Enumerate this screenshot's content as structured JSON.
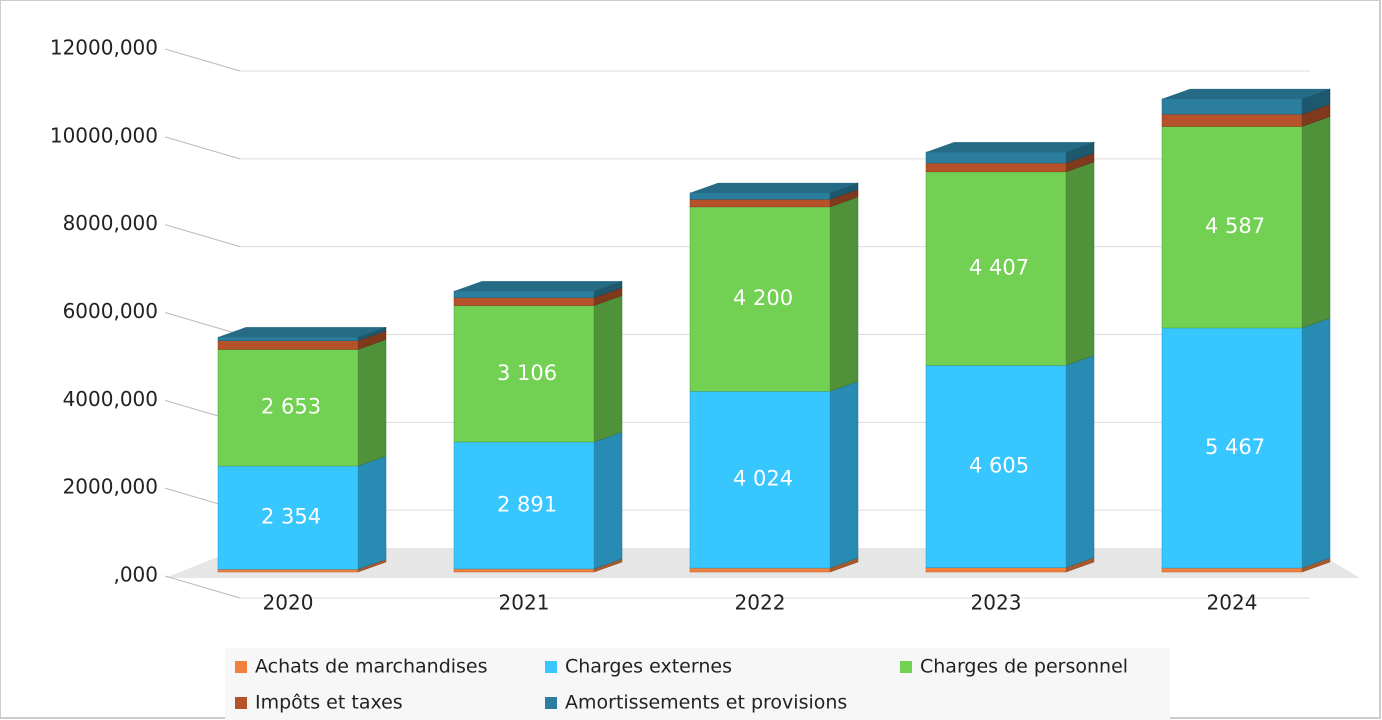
{
  "chart_data": {
    "type": "bar3d_stacked",
    "categories": [
      "2020",
      "2021",
      "2022",
      "2023",
      "2024"
    ],
    "series": [
      {
        "name": "Achats de marchandises",
        "color": "#f0803c",
        "values": [
          60,
          70,
          90,
          100,
          90
        ]
      },
      {
        "name": "Charges externes",
        "color": "#38c6ff",
        "values": [
          2354,
          2891,
          4024,
          4605,
          5467
        ],
        "value_labels": [
          "2 354",
          "2 891",
          "4 024",
          "4 605",
          "5 467"
        ]
      },
      {
        "name": "Charges de personnel",
        "color": "#72d052",
        "values": [
          2653,
          3106,
          4200,
          4407,
          4587
        ],
        "value_labels": [
          "2 653",
          "3 106",
          "4 200",
          "4 407",
          "4 587"
        ]
      },
      {
        "name": "Impôts et taxes",
        "color": "#b5522a",
        "values": [
          200,
          180,
          170,
          200,
          280
        ]
      },
      {
        "name": "Amortissements et provisions",
        "color": "#2b7e9e",
        "values": [
          80,
          150,
          150,
          250,
          350
        ]
      }
    ],
    "ylim": [
      0,
      12000
    ],
    "yticks": [
      {
        "value": 0,
        "label": ",000"
      },
      {
        "value": 2000,
        "label": "2000,000"
      },
      {
        "value": 4000,
        "label": "4000,000"
      },
      {
        "value": 6000,
        "label": "6000,000"
      },
      {
        "value": 8000,
        "label": "8000,000"
      },
      {
        "value": 10000,
        "label": "10000,000"
      },
      {
        "value": 12000,
        "label": "12000,000"
      }
    ],
    "grid": true
  }
}
